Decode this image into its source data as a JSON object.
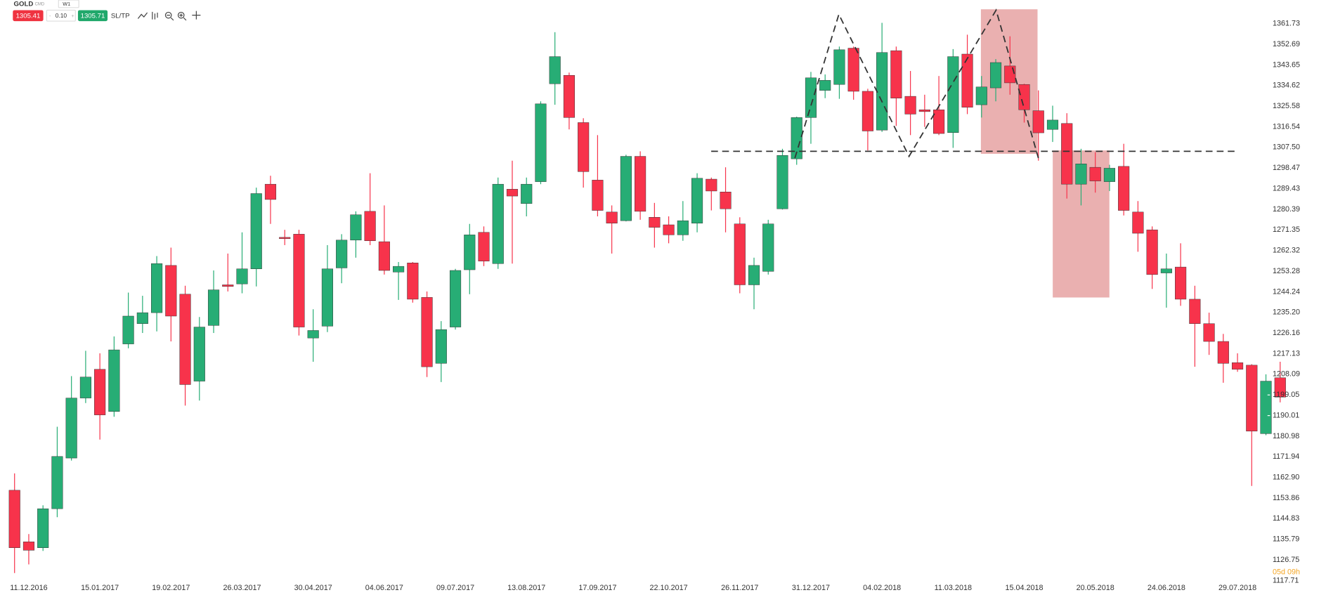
{
  "toolbar": {
    "symbol": "GOLD",
    "market": "CMD",
    "timeframe": "W1",
    "sell_price": "1305.41",
    "volume": "0.10",
    "buy_price": "1305.71",
    "sltp": "SL/TP"
  },
  "countdown": "05d 09h",
  "chart_data": {
    "type": "candlestick",
    "categories": [
      null,
      "11.12.2016",
      null,
      null,
      null,
      null,
      "15.01.2017",
      null,
      null,
      null,
      null,
      "19.02.2017",
      null,
      null,
      null,
      null,
      "26.03.2017",
      null,
      null,
      null,
      null,
      "30.04.2017",
      null,
      null,
      null,
      null,
      "04.06.2017",
      null,
      null,
      null,
      null,
      "09.07.2017",
      null,
      null,
      null,
      null,
      "13.08.2017",
      null,
      null,
      null,
      null,
      "17.09.2017",
      null,
      null,
      null,
      null,
      "22.10.2017",
      null,
      null,
      null,
      null,
      "26.11.2017",
      null,
      null,
      null,
      null,
      "31.12.2017",
      null,
      null,
      null,
      null,
      "04.02.2018",
      null,
      null,
      null,
      null,
      "11.03.2018",
      null,
      null,
      null,
      null,
      "15.04.2018",
      null,
      null,
      null,
      null,
      "20.05.2018",
      null,
      null,
      null,
      null,
      "24.06.2018",
      null,
      null,
      null,
      null,
      "29.07.2018",
      null,
      null,
      null
    ],
    "open": [
      1157.3,
      1134.7,
      1132.1,
      1149.2,
      1171.4,
      1197.7,
      1210.3,
      1191.8,
      1221.4,
      1230.3,
      1235.1,
      1255.8,
      1243.2,
      1205.1,
      1229.5,
      1247.3,
      1247.7,
      1254.3,
      1291.4,
      1268.1,
      1269.5,
      1224.0,
      1229.2,
      1254.7,
      1266.9,
      1279.5,
      1266.2,
      1252.9,
      1256.9,
      1241.8,
      1212.9,
      1228.8,
      1253.9,
      1270.3,
      1256.6,
      1289.2,
      1282.9,
      1292.5,
      1335.4,
      1339.1,
      1318.4,
      1293.2,
      1279.2,
      1275.4,
      1303.6,
      1276.9,
      1273.6,
      1269.2,
      1274.3,
      1293.6,
      1288.0,
      1274.0,
      1247.3,
      1253.2,
      1280.6,
      1302.5,
      1320.6,
      1332.5,
      1335.1,
      1351.0,
      1332.1,
      1315.1,
      1349.9,
      1329.9,
      1324.0,
      1324.0,
      1314.0,
      1348.4,
      1326.2,
      1333.6,
      1343.2,
      1335.1,
      1323.6,
      1315.4,
      1318.0,
      1291.4,
      1298.8,
      1292.5,
      1299.2,
      1279.2,
      1271.4,
      1252.5,
      1255.1,
      1241.0,
      1230.3,
      1222.5,
      1213.2,
      1212.1,
      1182.1,
      1206.6
    ],
    "high": [
      1164.7,
      1138.1,
      1150.7,
      1185.1,
      1207.3,
      1218.4,
      1217.3,
      1224.7,
      1243.9,
      1242.5,
      1259.9,
      1263.6,
      1246.9,
      1233.2,
      1253.6,
      1261.0,
      1270.3,
      1289.9,
      1295.1,
      1271.4,
      1271.4,
      1236.6,
      1264.7,
      1269.5,
      1279.5,
      1296.2,
      1282.1,
      1257.3,
      1257.3,
      1244.4,
      1231.4,
      1254.3,
      1274.0,
      1272.9,
      1294.3,
      1301.7,
      1294.3,
      1327.7,
      1358.0,
      1340.3,
      1320.3,
      1312.9,
      1282.1,
      1304.3,
      1305.8,
      1283.2,
      1277.3,
      1284.0,
      1296.2,
      1294.3,
      1298.8,
      1276.9,
      1259.2,
      1275.8,
      1306.9,
      1321.0,
      1340.6,
      1339.5,
      1351.7,
      1351.7,
      1333.2,
      1362.1,
      1351.7,
      1341.0,
      1330.6,
      1338.8,
      1350.6,
      1356.9,
      1338.8,
      1346.2,
      1356.2,
      1335.4,
      1332.5,
      1325.8,
      1322.5,
      1306.9,
      1305.4,
      1299.9,
      1309.1,
      1284.0,
      1272.9,
      1261.0,
      1265.5,
      1246.9,
      1235.1,
      1225.8,
      1217.3,
      1212.5,
      1208.1,
      1213.6
    ],
    "low": [
      1121.0,
      1124.8,
      1130.7,
      1145.5,
      1170.3,
      1195.5,
      1179.5,
      1189.5,
      1219.5,
      1226.2,
      1226.9,
      1222.5,
      1194.4,
      1196.6,
      1226.2,
      1244.4,
      1243.6,
      1246.6,
      1274.0,
      1264.7,
      1225.1,
      1213.6,
      1226.6,
      1248.0,
      1259.2,
      1264.7,
      1251.8,
      1240.7,
      1239.5,
      1206.9,
      1204.7,
      1227.7,
      1243.2,
      1255.5,
      1254.3,
      1256.6,
      1277.3,
      1291.4,
      1326.2,
      1315.4,
      1289.9,
      1277.3,
      1261.0,
      1275.1,
      1275.8,
      1263.6,
      1265.5,
      1266.6,
      1270.3,
      1279.9,
      1270.3,
      1243.6,
      1236.6,
      1251.8,
      1280.3,
      1299.9,
      1309.1,
      1329.1,
      1328.8,
      1328.4,
      1306.2,
      1314.3,
      1316.9,
      1312.9,
      1316.5,
      1312.9,
      1307.3,
      1322.1,
      1320.6,
      1327.7,
      1330.6,
      1318.4,
      1301.7,
      1309.9,
      1285.1,
      1282.1,
      1287.7,
      1288.4,
      1277.7,
      1261.8,
      1245.5,
      1237.3,
      1238.1,
      1211.4,
      1216.6,
      1204.4,
      1209.2,
      1159.2,
      1181.4,
      1195.8
    ],
    "close": [
      1132.1,
      1131.0,
      1149.2,
      1172.1,
      1197.7,
      1206.9,
      1190.3,
      1218.8,
      1233.6,
      1235.1,
      1256.6,
      1233.6,
      1203.6,
      1228.8,
      1245.1,
      1246.6,
      1254.3,
      1287.3,
      1284.7,
      1267.7,
      1228.8,
      1227.3,
      1254.3,
      1266.9,
      1278.0,
      1266.6,
      1253.6,
      1255.4,
      1241.0,
      1211.4,
      1227.7,
      1253.6,
      1269.2,
      1257.7,
      1291.4,
      1286.2,
      1291.4,
      1326.6,
      1347.3,
      1320.6,
      1296.9,
      1279.9,
      1274.3,
      1303.6,
      1279.5,
      1272.5,
      1269.2,
      1275.4,
      1294.0,
      1288.4,
      1280.6,
      1247.3,
      1255.8,
      1274.0,
      1304.0,
      1320.6,
      1338.0,
      1336.9,
      1350.3,
      1332.1,
      1314.7,
      1349.1,
      1329.1,
      1322.1,
      1323.2,
      1313.6,
      1347.3,
      1325.1,
      1334.0,
      1344.7,
      1335.8,
      1324.0,
      1313.9,
      1319.5,
      1291.4,
      1300.3,
      1292.8,
      1298.4,
      1279.9,
      1269.9,
      1251.8,
      1254.3,
      1241.0,
      1230.3,
      1222.5,
      1212.9,
      1210.3,
      1183.2,
      1205.1,
      1198.1
    ],
    "up_color": "#27ad75",
    "down_color": "#f7334b",
    "ylim": [
      1111.4,
      1372.1
    ],
    "yticks": [
      1117.71,
      1126.75,
      1135.79,
      1144.83,
      1153.86,
      {
        "value": 1162.9,
        "label": "1162.90"
      },
      1171.94,
      1180.98,
      1190.01,
      1199.05,
      1208.09,
      1217.13,
      1226.16,
      {
        "value": 1235.2,
        "label": "1235.20"
      },
      1244.24,
      1253.28,
      1262.32,
      1271.35,
      1280.39,
      1289.43,
      1298.47,
      {
        "value": 1307.5,
        "label": "1307.50"
      },
      1316.54,
      1325.58,
      1334.62,
      1343.65,
      1352.69,
      1361.73
    ],
    "grid": false
  }
}
